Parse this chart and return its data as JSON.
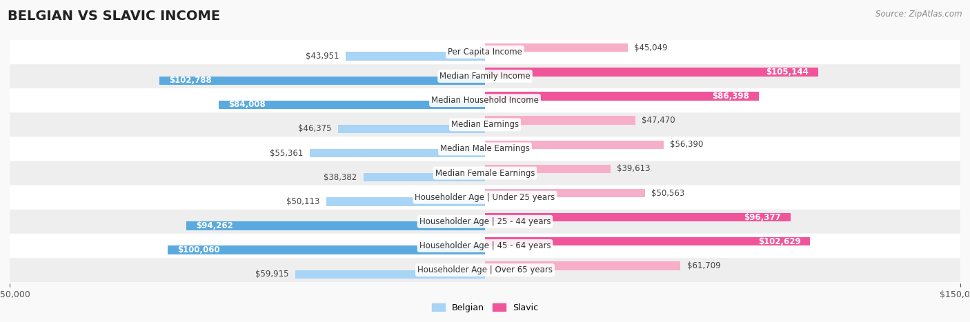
{
  "title": "BELGIAN VS SLAVIC INCOME",
  "source": "Source: ZipAtlas.com",
  "categories": [
    "Per Capita Income",
    "Median Family Income",
    "Median Household Income",
    "Median Earnings",
    "Median Male Earnings",
    "Median Female Earnings",
    "Householder Age | Under 25 years",
    "Householder Age | 25 - 44 years",
    "Householder Age | 45 - 64 years",
    "Householder Age | Over 65 years"
  ],
  "belgian_values": [
    43951,
    102788,
    84008,
    46375,
    55361,
    38382,
    50113,
    94262,
    100060,
    59915
  ],
  "slavic_values": [
    45049,
    105144,
    86398,
    47470,
    56390,
    39613,
    50563,
    96377,
    102629,
    61709
  ],
  "belgian_color_light": "#a8d4f5",
  "belgian_color_dark": "#5aaae0",
  "slavic_color_light": "#f7aec8",
  "slavic_color_dark": "#f0559a",
  "high_threshold": 80000,
  "xlim": 150000,
  "bar_height": 0.35,
  "row_colors": [
    "#ffffff",
    "#eeeeee"
  ],
  "title_fontsize": 14,
  "label_fontsize": 8.5,
  "tick_fontsize": 9,
  "legend_fontsize": 9
}
